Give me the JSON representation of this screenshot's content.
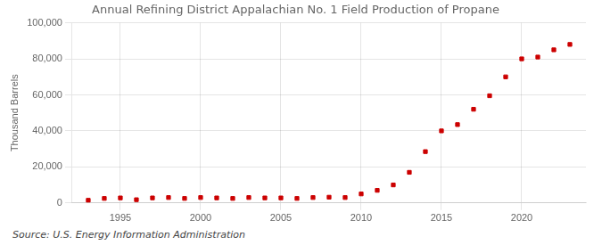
{
  "chart_data": {
    "type": "scatter",
    "title": "Annual Refining District Appalachian No. 1 Field Production of Propane",
    "ylabel": "Thousand Barrels",
    "annotation": "Source: U.S. Energy Information Administration",
    "x": [
      1993,
      1994,
      1995,
      1996,
      1997,
      1998,
      1999,
      2000,
      2001,
      2002,
      2003,
      2004,
      2005,
      2006,
      2007,
      2008,
      2009,
      2010,
      2011,
      2012,
      2013,
      2014,
      2015,
      2016,
      2017,
      2018,
      2019,
      2020,
      2021,
      2022,
      2023
    ],
    "values": [
      1500,
      2500,
      2800,
      1800,
      2800,
      3000,
      2500,
      3000,
      2800,
      2500,
      3000,
      2800,
      2800,
      2500,
      3000,
      3200,
      3000,
      5000,
      7000,
      10000,
      17000,
      28500,
      40000,
      43500,
      52000,
      59500,
      70000,
      80000,
      81000,
      85000,
      88000
    ],
    "color": "#cc0000",
    "marker": "square",
    "xlim": [
      1992,
      2024
    ],
    "xticks": [
      1995,
      2000,
      2005,
      2010,
      2015,
      2020
    ],
    "ylim": [
      0,
      100000
    ],
    "yticks": [
      0,
      {
        "value": 20000,
        "label": "20,000"
      },
      {
        "value": 40000,
        "label": "40,000"
      },
      {
        "value": 60000,
        "label": "60,000"
      },
      {
        "value": 80000,
        "label": "80,000"
      },
      {
        "value": 100000,
        "label": "100,000"
      }
    ],
    "grid": true
  }
}
